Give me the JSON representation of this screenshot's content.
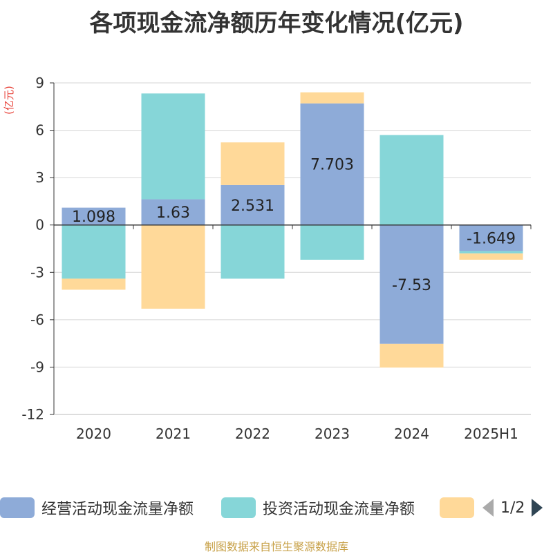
{
  "chart_data": {
    "type": "bar",
    "stacked": true,
    "title": "各项现金流净额历年变化情况(亿元)",
    "ylabel": "(亿元)",
    "ylim": [
      -12,
      9
    ],
    "yticks": [
      9,
      6,
      3,
      0,
      -3,
      -6,
      -9,
      -12
    ],
    "grid": true,
    "categories": [
      "2020",
      "2021",
      "2022",
      "2023",
      "2024",
      "2025H1"
    ],
    "series": [
      {
        "name": "经营活动现金流量净额",
        "color": "#8eabd8",
        "values": [
          1.098,
          1.63,
          2.531,
          7.703,
          -7.53,
          -1.649
        ],
        "labels": [
          "1.098",
          "1.63",
          "2.531",
          "7.703",
          "-7.53",
          "-1.649"
        ]
      },
      {
        "name": "投资活动现金流量净额",
        "color": "#86d6d8",
        "values": [
          -3.4,
          6.7,
          -3.4,
          -2.2,
          5.7,
          -0.15
        ]
      },
      {
        "name": "",
        "color": "#ffd999",
        "values": [
          -0.7,
          -5.3,
          2.7,
          0.7,
          -1.5,
          -0.4
        ]
      }
    ],
    "legend": {
      "position": "bottom",
      "page": "1/2"
    }
  },
  "footer": "制图数据来自恒生聚源数据库"
}
